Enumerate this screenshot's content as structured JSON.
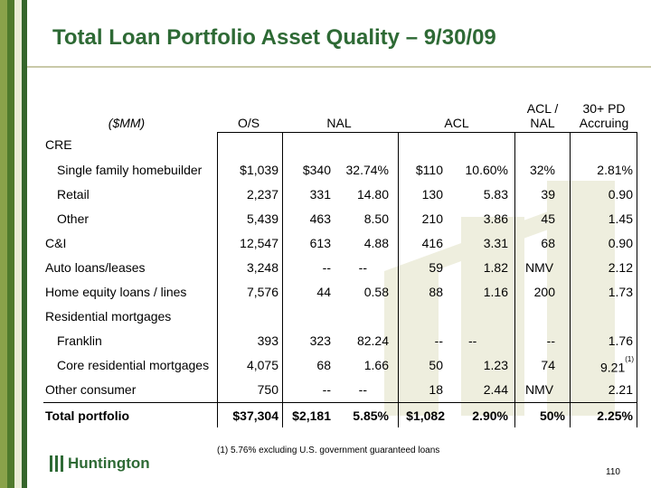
{
  "title": "Total Loan Portfolio Asset Quality – 9/30/09",
  "header": {
    "mm": "($MM)",
    "os": "O/S",
    "nal": "NAL",
    "acl": "ACL",
    "acl_nal_1": "ACL /",
    "acl_nal_2": "NAL",
    "pd_1": "30+ PD",
    "pd_2": "Accruing"
  },
  "rows": [
    {
      "label": "CRE",
      "os": "",
      "nal": "",
      "nal_pct": "",
      "acl": "",
      "acl_pct": "",
      "acl_nal": "",
      "pd": ""
    },
    {
      "label": "Single family homebuilder",
      "os": "$1,039",
      "nal": "$340",
      "nal_pct": "32.74%",
      "acl": "$110",
      "acl_pct": "10.60%",
      "acl_nal": "32%",
      "pd": "2.81%"
    },
    {
      "label": "Retail",
      "os": "2,237",
      "nal": "331",
      "nal_pct": "14.80",
      "acl": "130",
      "acl_pct": "5.83",
      "acl_nal": "39",
      "pd": "0.90"
    },
    {
      "label": "Other",
      "os": "5,439",
      "nal": "463",
      "nal_pct": "8.50",
      "acl": "210",
      "acl_pct": "3.86",
      "acl_nal": "45",
      "pd": "1.45"
    },
    {
      "label": "C&I",
      "os": "12,547",
      "nal": "613",
      "nal_pct": "4.88",
      "acl": "416",
      "acl_pct": "3.31",
      "acl_nal": "68",
      "pd": "0.90"
    },
    {
      "label": "Auto loans/leases",
      "os": "3,248",
      "nal": "--",
      "nal_pct": "--",
      "acl": "59",
      "acl_pct": "1.82",
      "acl_nal": "NMV",
      "pd": "2.12"
    },
    {
      "label": "Home equity loans / lines",
      "os": "7,576",
      "nal": "44",
      "nal_pct": "0.58",
      "acl": "88",
      "acl_pct": "1.16",
      "acl_nal": "200",
      "pd": "1.73"
    },
    {
      "label": "Residential mortgages",
      "os": "",
      "nal": "",
      "nal_pct": "",
      "acl": "",
      "acl_pct": "",
      "acl_nal": "",
      "pd": ""
    },
    {
      "label": "Franklin",
      "os": "393",
      "nal": "323",
      "nal_pct": "82.24",
      "acl": "--",
      "acl_pct": "--",
      "acl_nal": "--",
      "pd": "1.76"
    },
    {
      "label": "Core residential mortgages",
      "os": "4,075",
      "nal": "68",
      "nal_pct": "1.66",
      "acl": "50",
      "acl_pct": "1.23",
      "acl_nal": "74",
      "pd": "9.21"
    },
    {
      "label": "Other consumer",
      "os": "750",
      "nal": "--",
      "nal_pct": "--",
      "acl": "18",
      "acl_pct": "2.44",
      "acl_nal": "NMV",
      "pd": "2.21"
    },
    {
      "label": "Total portfolio",
      "os": "$37,304",
      "nal": "$2,181",
      "nal_pct": "5.85%",
      "acl": "$1,082",
      "acl_pct": "2.90%",
      "acl_nal": "50%",
      "pd": "2.25%"
    }
  ],
  "footnote_marker": "(1)",
  "footnote": "(1)  5.76% excluding U.S. government guaranteed loans",
  "logo_text": "Huntington",
  "page_number": "110",
  "colors": {
    "brand_green": "#2e6a35",
    "stripe_light": "#8aa24a",
    "watermark": "#eeeede"
  }
}
